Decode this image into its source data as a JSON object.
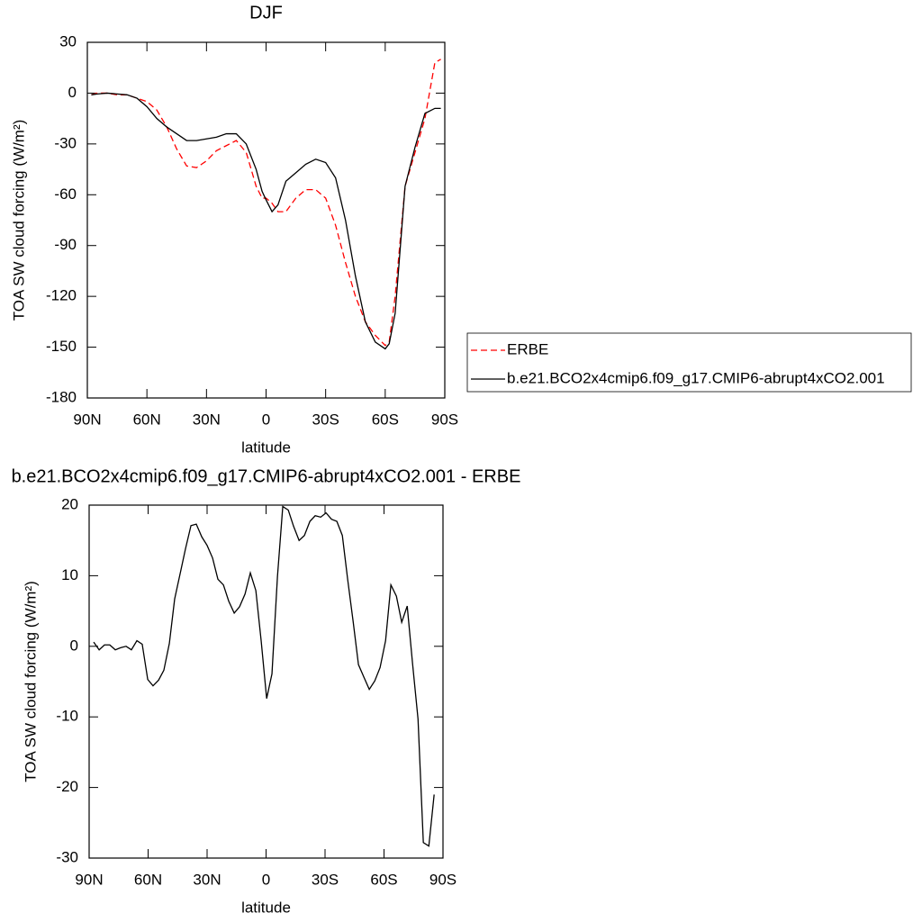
{
  "chart_data": [
    {
      "type": "line",
      "title": "DJF",
      "x_label": "latitude",
      "y_label": "TOA SW cloud forcing (W/m²)",
      "x": [
        88,
        85,
        80,
        75,
        70,
        65,
        60,
        55,
        50,
        45,
        40,
        35,
        30,
        25,
        20,
        15,
        10,
        5,
        2,
        0,
        -3,
        -6,
        -10,
        -15,
        -20,
        -25,
        -30,
        -35,
        -40,
        -45,
        -50,
        -55,
        -60,
        -62,
        -65,
        -70,
        -75,
        -80,
        -85,
        -88
      ],
      "series": [
        {
          "name": "ERBE",
          "color": "#ff0000",
          "line_style": "dashed",
          "values": [
            -1,
            0,
            0,
            -1,
            -1,
            -3,
            -5,
            -10,
            -20,
            -33,
            -43,
            -44,
            -40,
            -34,
            -31,
            -28,
            -35,
            -55,
            -62,
            -62,
            -65,
            -70,
            -70,
            -62,
            -57,
            -57,
            -62,
            -78,
            -100,
            -120,
            -135,
            -143,
            -149,
            -147,
            -120,
            -55,
            -35,
            -15,
            18,
            20
          ]
        },
        {
          "name": "b.e21.BCO2x4cmip6.f09_g17.CMIP6-abrupt4xCO2.001",
          "color": "#000000",
          "line_style": "solid",
          "values": [
            -1,
            -0.5,
            0,
            -0.5,
            -1,
            -3,
            -8,
            -15,
            -20,
            -24,
            -28,
            -28,
            -27,
            -26,
            -24,
            -24,
            -30,
            -45,
            -58,
            -63,
            -70,
            -66,
            -52,
            -47,
            -42,
            -39,
            -41,
            -50,
            -75,
            -108,
            -135,
            -147,
            -151,
            -148,
            -130,
            -55,
            -32,
            -12,
            -9,
            -9
          ]
        }
      ],
      "xlim": [
        90,
        -90
      ],
      "xticks": [
        {
          "value": 90,
          "label": "90N"
        },
        {
          "value": 60,
          "label": "60N"
        },
        {
          "value": 30,
          "label": "30N"
        },
        0,
        {
          "value": -30,
          "label": "30S"
        },
        {
          "value": -60,
          "label": "60S"
        },
        {
          "value": -90,
          "label": "90S"
        }
      ],
      "ylim": [
        -180,
        30
      ],
      "yticks": [
        -180,
        -150,
        -120,
        -90,
        -60,
        -30,
        0,
        30
      ],
      "legend": "right"
    },
    {
      "type": "line",
      "title": "b.e21.BCO2x4cmip6.f09_g17.CMIP6-abrupt4xCO2.001 - ERBE",
      "x_label": "latitude",
      "y_label": "TOA SW cloud forcing (W/m²)",
      "x": [
        87.7,
        84.9,
        82.2,
        79.5,
        76.7,
        74.0,
        71.2,
        68.5,
        65.7,
        63.0,
        60.2,
        57.5,
        54.7,
        52.0,
        49.2,
        46.5,
        43.7,
        41.0,
        38.2,
        35.5,
        32.7,
        30.0,
        27.2,
        24.5,
        21.7,
        19.0,
        16.2,
        13.5,
        10.7,
        8.0,
        5.2,
        2.5,
        -0.3,
        -3.0,
        -5.8,
        -8.5,
        -11.3,
        -14.0,
        -16.8,
        -19.5,
        -22.3,
        -25.0,
        -27.8,
        -30.5,
        -33.3,
        -36.0,
        -38.8,
        -41.5,
        -44.3,
        -47.0,
        -49.8,
        -52.5,
        -55.3,
        -58.0,
        -60.8,
        -63.5,
        -66.3,
        -69.0,
        -71.8,
        -74.5,
        -77.3,
        -80.0,
        -82.8,
        -85.5
      ],
      "values": [
        0.6,
        -0.5,
        0.2,
        0.2,
        -0.5,
        -0.2,
        0,
        -0.5,
        0.8,
        0.3,
        -4.7,
        -5.6,
        -4.8,
        -3.4,
        0.4,
        6.7,
        10.3,
        13.8,
        17.1,
        17.3,
        15.5,
        14.3,
        12.5,
        9.5,
        8.7,
        6.4,
        4.7,
        5.6,
        7.4,
        10.4,
        7.9,
        0.8,
        -7.4,
        -3.9,
        9.9,
        19.8,
        19.3,
        17,
        15,
        15.7,
        17.7,
        18.5,
        18.3,
        18.9,
        18,
        17.7,
        15.7,
        9.5,
        3.5,
        -2.6,
        -4.4,
        -6.1,
        -4.9,
        -3,
        0.8,
        8.7,
        7.1,
        3.4,
        5.7,
        -2.4,
        -10.3,
        -27.8,
        -28.3,
        -21
      ],
      "color": "#000000",
      "xlim": [
        90,
        -90
      ],
      "xticks": [
        {
          "value": 90,
          "label": "90N"
        },
        {
          "value": 60,
          "label": "60N"
        },
        {
          "value": 30,
          "label": "30N"
        },
        0,
        {
          "value": -30,
          "label": "30S"
        },
        {
          "value": -60,
          "label": "60S"
        },
        {
          "value": -90,
          "label": "90S"
        }
      ],
      "ylim": [
        -30,
        20
      ],
      "yticks": [
        -30,
        -20,
        -10,
        0,
        10,
        20
      ]
    }
  ]
}
